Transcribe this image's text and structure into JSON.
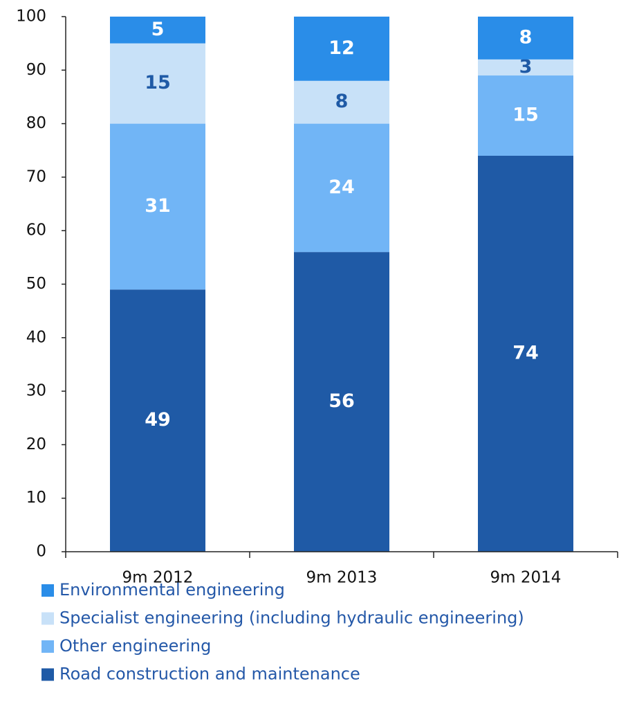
{
  "chart_data": {
    "type": "stacked_bar",
    "categories": [
      "9m 2012",
      "9m 2013",
      "9m 2014"
    ],
    "series": [
      {
        "name": "Road construction and maintenance",
        "color": "#1f5aa6",
        "label_color": "#ffffff",
        "values": [
          49,
          56,
          74
        ]
      },
      {
        "name": "Other engineering",
        "color": "#71b5f6",
        "label_color": "#ffffff",
        "values": [
          31,
          24,
          15
        ]
      },
      {
        "name": "Specialist engineering (including hydraulic engineering)",
        "color": "#c8e1f8",
        "label_color": "#1f5aa6",
        "values": [
          15,
          8,
          3
        ]
      },
      {
        "name": "Environmental engineering",
        "color": "#2a8de8",
        "label_color": "#ffffff",
        "values": [
          5,
          12,
          8
        ]
      }
    ],
    "ylim": [
      0,
      100
    ],
    "yticks": [
      0,
      10,
      20,
      30,
      40,
      50,
      60,
      70,
      80,
      90,
      100
    ],
    "grid": false,
    "legend": "bottom"
  }
}
